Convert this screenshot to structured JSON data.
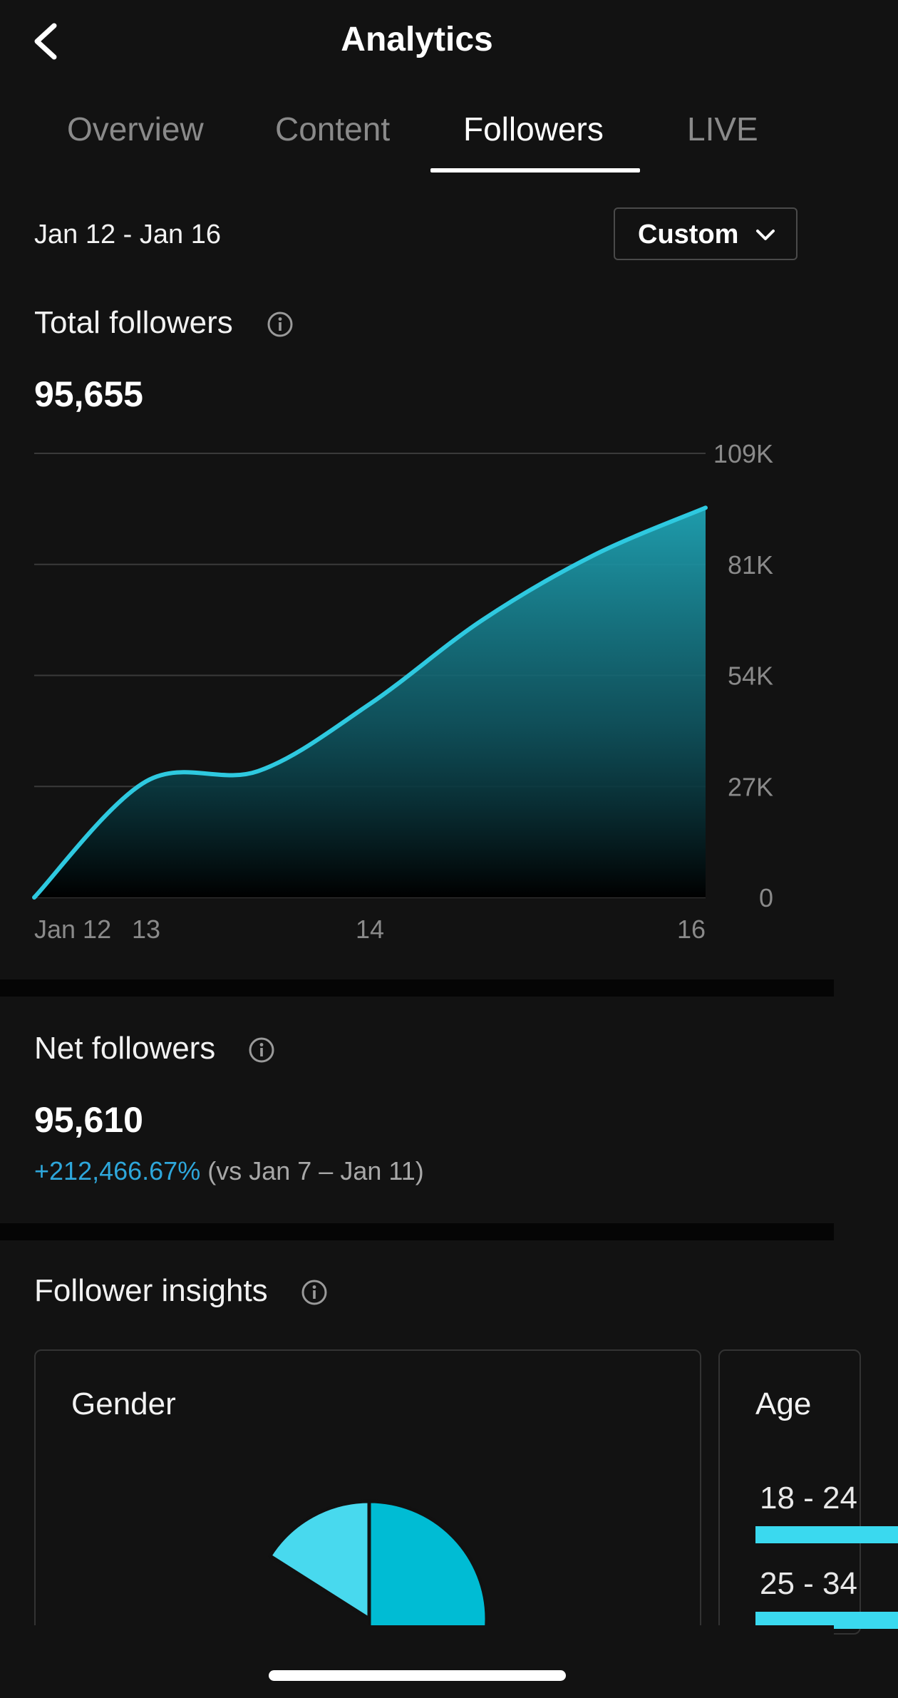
{
  "header": {
    "title": "Analytics",
    "back_icon": "chevron-left-icon"
  },
  "tabs": [
    {
      "label": "Overview",
      "active": false
    },
    {
      "label": "Content",
      "active": false
    },
    {
      "label": "Followers",
      "active": true
    },
    {
      "label": "LIVE",
      "active": false
    }
  ],
  "date_filter": {
    "range": "Jan 12 - Jan 16",
    "button_label": "Custom",
    "button_icon": "chevron-down-icon"
  },
  "total_followers": {
    "title": "Total followers",
    "value": "95,655"
  },
  "chart_data": {
    "type": "area",
    "x": [
      "Jan 12",
      "13",
      "",
      "14",
      "",
      "",
      "16"
    ],
    "x_tick_labels": [
      "Jan 12",
      "13",
      "14",
      "16"
    ],
    "y_tick_labels": [
      "0",
      "27K",
      "54K",
      "81K",
      "109K"
    ],
    "ylim": [
      0,
      109000
    ],
    "series": [
      {
        "values": [
          0,
          28500,
          31000,
          47500,
          68000,
          84000,
          95655
        ],
        "color": "#2ec9e0"
      }
    ],
    "grid": true
  },
  "net_followers": {
    "title": "Net followers",
    "value": "95,610",
    "change": "+212,466.67%",
    "comparison": "(vs Jan 7 – Jan 11)"
  },
  "insights": {
    "title": "Follower insights",
    "gender_card": {
      "title": "Gender",
      "slices": [
        {
          "share": 0.5,
          "color": "#00bcd4"
        },
        {
          "share": 0.16,
          "color": "#48d9ee"
        }
      ]
    },
    "age_card": {
      "title": "Age",
      "rows": [
        {
          "label": "18 - 24"
        },
        {
          "label": "25 - 34"
        }
      ]
    }
  },
  "colors": {
    "accent": "#2ea7db",
    "line": "#2ec9e0",
    "background": "#121212"
  }
}
